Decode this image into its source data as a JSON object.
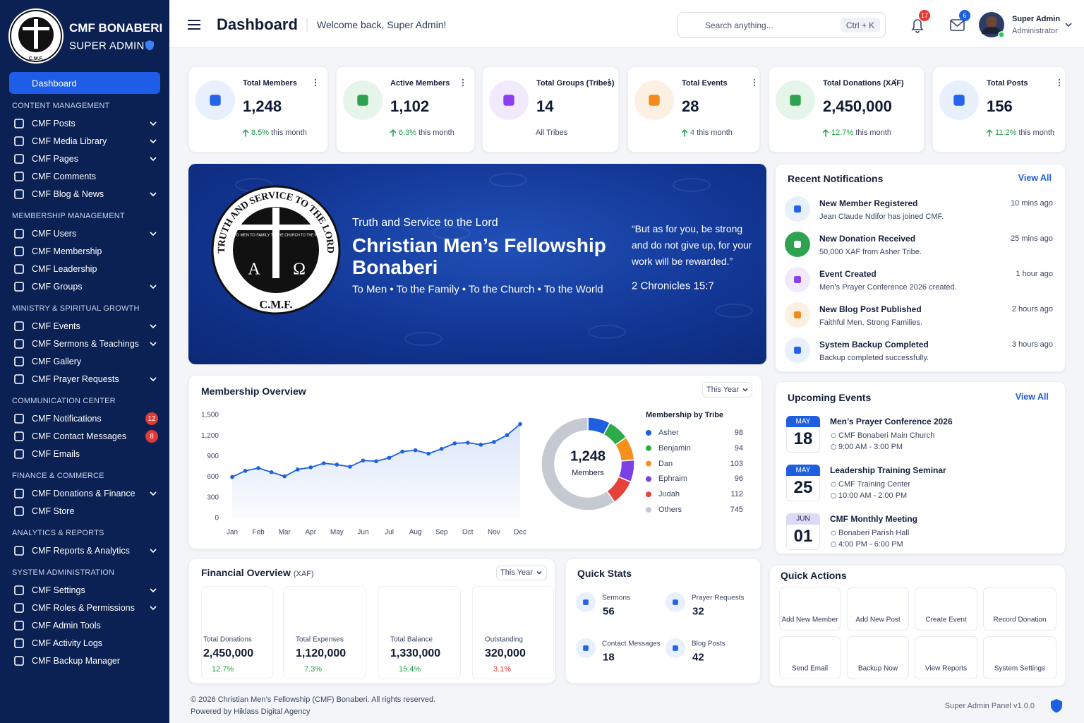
{
  "sidebar": {
    "logo_text": "C.M.F.",
    "brand": "CMF BONABERI",
    "role": "SUPER ADMIN",
    "active": "Dashboard",
    "groups": [
      {
        "title": "CONTENT MANAGEMENT",
        "items": [
          {
            "label": "CMF Posts",
            "expandable": true
          },
          {
            "label": "CMF Media Library",
            "expandable": true
          },
          {
            "label": "CMF Pages",
            "expandable": true
          },
          {
            "label": "CMF Comments",
            "expandable": false
          },
          {
            "label": "CMF Blog & News",
            "expandable": true
          }
        ]
      },
      {
        "title": "MEMBERSHIP MANAGEMENT",
        "items": [
          {
            "label": "CMF Users",
            "expandable": true
          },
          {
            "label": "CMF Membership",
            "expandable": false
          },
          {
            "label": "CMF Leadership",
            "expandable": false
          },
          {
            "label": "CMF Groups",
            "expandable": true
          }
        ]
      },
      {
        "title": "MINISTRY & SPIRITUAL GROWTH",
        "items": [
          {
            "label": "CMF Events",
            "expandable": true
          },
          {
            "label": "CMF Sermons & Teachings",
            "expandable": true
          },
          {
            "label": "CMF Gallery",
            "expandable": false
          },
          {
            "label": "CMF Prayer Requests",
            "expandable": true
          }
        ]
      },
      {
        "title": "COMMUNICATION CENTER",
        "items": [
          {
            "label": "CMF Notifications",
            "expandable": false,
            "badge": 12
          },
          {
            "label": "CMF Contact Messages",
            "expandable": false,
            "badge": 8
          },
          {
            "label": "CMF Emails",
            "expandable": false
          }
        ]
      },
      {
        "title": "FINANCE & COMMERCE",
        "items": [
          {
            "label": "CMF Donations & Finance",
            "expandable": true
          },
          {
            "label": "CMF Store",
            "expandable": false
          }
        ]
      },
      {
        "title": "ANALYTICS & REPORTS",
        "items": [
          {
            "label": "CMF Reports & Analytics",
            "expandable": true
          }
        ]
      },
      {
        "title": "SYSTEM ADMINISTRATION",
        "items": [
          {
            "label": "CMF Settings",
            "expandable": true
          },
          {
            "label": "CMF Roles & Permissions",
            "expandable": true
          },
          {
            "label": "CMF Admin Tools",
            "expandable": false
          },
          {
            "label": "CMF Activity Logs",
            "expandable": false
          },
          {
            "label": "CMF Backup Manager",
            "expandable": false
          }
        ]
      }
    ]
  },
  "header": {
    "title": "Dashboard",
    "welcome": "Welcome back, Super Admin!",
    "search": "Search anything...",
    "shortcut": "Ctrl + K",
    "notification_count": 17,
    "message_count": 6,
    "user_name": "Super Admin",
    "user_role": "Administrator"
  },
  "stats": [
    {
      "label": "Total Members",
      "value": "1,248",
      "change": "8.5%",
      "note": "this month"
    },
    {
      "label": "Active Members",
      "value": "1,102",
      "change": "6.3%",
      "note": "this month"
    },
    {
      "label": "Total Groups (Tribes)",
      "value": "14",
      "note": "All Tribes"
    },
    {
      "label": "Total Events",
      "value": "28",
      "change": "4",
      "note": "this month"
    },
    {
      "label": "Total Donations (XAF)",
      "value": "2,450,000",
      "change": "12.7%",
      "note": "this month"
    },
    {
      "label": "Total Posts",
      "value": "156",
      "change": "11.2%",
      "note": "this month"
    }
  ],
  "banner": {
    "logo_motto": "TRUTH AND SERVICE TO THE LORD",
    "logo_left": "TO MEN TO FAMILY",
    "logo_right": "TO THE CHURCH TO THE WORLD",
    "logo_alpha": "A",
    "logo_omega": "Ω",
    "logo_initials": "C.M.F.",
    "subtitle": "Truth and Service to the Lord",
    "title": "Christian Men’s Fellowship Bonaberi",
    "tagline": "To Men • To the Family • To the Church • To the World",
    "quote": "“But as for you, be strong and do not give up, for your work will be rewarded.”",
    "reference": "2 Chronicles 15:7"
  },
  "notifications": {
    "title": "Recent Notifications",
    "link": "View All",
    "items": [
      {
        "title": "New Member Registered",
        "text": "Jean Claude Ndifor has joined CMF.",
        "time": "10 mins ago"
      },
      {
        "title": "New Donation Received",
        "text": "50,000 XAF from Asher Tribe.",
        "time": "25 mins ago"
      },
      {
        "title": "Event Created",
        "text": "Men’s Prayer Conference 2026 created.",
        "time": "1 hour ago"
      },
      {
        "title": "New Blog Post Published",
        "text": "Faithful Men, Strong Families.",
        "time": "2 hours ago"
      },
      {
        "title": "System Backup Completed",
        "text": "Backup completed successfully.",
        "time": "3 hours ago"
      }
    ]
  },
  "chart_data": [
    {
      "type": "line",
      "title": "Membership Overview",
      "filter": "This Year",
      "categories": [
        "Jan",
        null,
        "Feb",
        null,
        "Mar",
        null,
        "Apr",
        null,
        "May",
        null,
        "Jun",
        null,
        "Jul",
        null,
        "Aug",
        null,
        "Sep",
        null,
        "Oct",
        null,
        "Nov",
        null,
        "Dec"
      ],
      "values": [
        600,
        690,
        730,
        670,
        610,
        710,
        740,
        800,
        780,
        750,
        840,
        830,
        880,
        970,
        990,
        940,
        1010,
        1090,
        1100,
        1070,
        1110,
        1210,
        1370
      ],
      "color": "#1d5fe0",
      "ylim": [
        0,
        1500
      ],
      "yticks": [
        0,
        300,
        600,
        900,
        {
          "value": 1200,
          "label": "1,200"
        },
        {
          "value": 1500,
          "label": "1,500"
        }
      ],
      "grid": false
    },
    {
      "type": "pie",
      "legend_title": "Membership by Tribe",
      "center_value": "1,248",
      "center_label": "Members",
      "categories": [
        "Asher",
        "Benjamin",
        "Dan",
        "Ephraim",
        "Judah",
        "Others"
      ],
      "values": [
        98,
        94,
        103,
        96,
        112,
        745
      ],
      "colors": [
        "#1d5fe0",
        "#2eaa4a",
        "#f5901e",
        "#7b3fe4",
        "#e8403a",
        "#c5c9d2"
      ]
    }
  ],
  "finance": {
    "title": "Financial Overview",
    "unit": "(XAF)",
    "filter": "This Year",
    "items": [
      {
        "label": "Total Donations",
        "value": "2,450,000",
        "change": "12.7%",
        "direction": "up"
      },
      {
        "label": "Total Expenses",
        "value": "1,120,000",
        "change": "7.3%",
        "direction": "up"
      },
      {
        "label": "Total Balance",
        "value": "1,330,000",
        "change": "15.4%",
        "direction": "up"
      },
      {
        "label": "Outstanding",
        "value": "320,000",
        "change": "3.1%",
        "direction": "down"
      }
    ]
  },
  "quick_stats": {
    "title": "Quick Stats",
    "items": [
      {
        "label": "Sermons",
        "value": 56
      },
      {
        "label": "Prayer Requests",
        "value": 32
      },
      {
        "label": "Contact Messages",
        "value": 18
      },
      {
        "label": "Blog Posts",
        "value": 42
      }
    ]
  },
  "events": {
    "title": "Upcoming Events",
    "link": "View All",
    "items": [
      {
        "month": "MAY",
        "day": "18",
        "title": "Men’s Prayer Conference 2026",
        "location": "CMF Bonaberi Main Church",
        "time": "9:00 AM - 3:00 PM"
      },
      {
        "month": "MAY",
        "day": "25",
        "title": "Leadership Training Seminar",
        "location": "CMF Training Center",
        "time": "10:00 AM - 2:00 PM"
      },
      {
        "month": "JUN",
        "day": "01",
        "title": "CMF Monthly Meeting",
        "location": "Bonaberi Parish Hall",
        "time": "4:00 PM - 6:00 PM"
      }
    ]
  },
  "quick_actions": {
    "title": "Quick Actions",
    "items": [
      "Add New Member",
      "Add New Post",
      "Create Event",
      "Record Donation",
      "Send Email",
      "Backup Now",
      "View Reports",
      "System Settings"
    ]
  },
  "footer": {
    "copyright": "© 2026 Christian Men’s Fellowship (CMF) Bonaberi. All rights reserved.",
    "powered": "Powered by Hiklass Digital Agency",
    "version": "Super Admin Panel v1.0.0"
  }
}
